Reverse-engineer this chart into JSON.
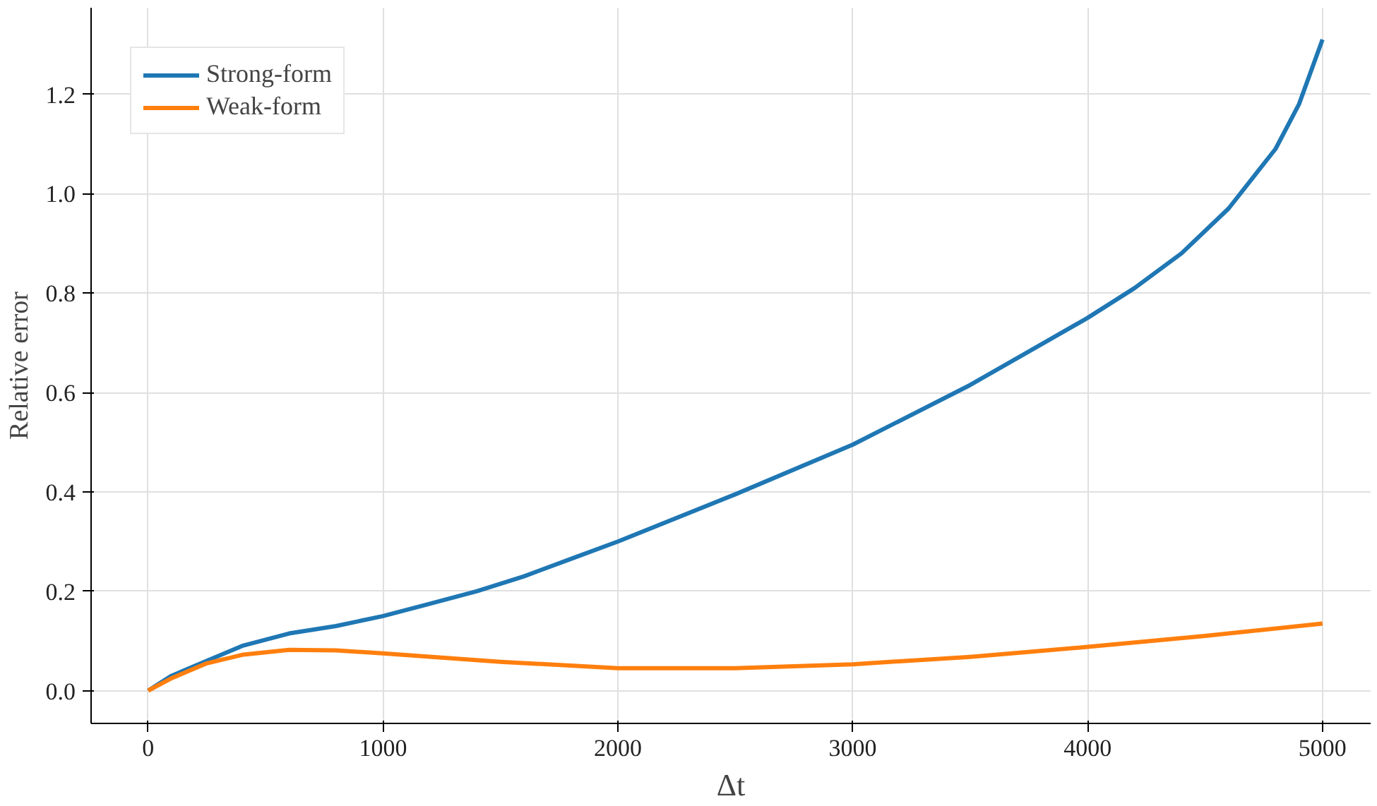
{
  "chart_data": {
    "type": "line",
    "xlabel": "Δt",
    "ylabel": "Relative error",
    "xlim": [
      -243,
      5205
    ],
    "ylim": [
      -0.066,
      1.374
    ],
    "xticks": [
      0,
      1000,
      2000,
      3000,
      4000,
      5000
    ],
    "yticks": [
      {
        "value": 0,
        "label": "0.0"
      },
      0.2,
      0.4,
      0.6,
      0.8,
      {
        "value": 1,
        "label": "1.0"
      },
      1.2
    ],
    "grid": true,
    "legend": "top left",
    "line_style": "solid",
    "marker": "none",
    "x": [
      0,
      100,
      250,
      400,
      600,
      800,
      1000,
      1200,
      1400,
      1600,
      1800,
      2000,
      2500,
      3000,
      3500,
      4000,
      4200,
      4400,
      4600,
      4800,
      4900,
      5000
    ],
    "series": [
      {
        "name": "Strong-form",
        "color": "#1f77b4",
        "values": [
          0,
          0.03,
          0.06,
          0.09,
          0.115,
          0.13,
          0.15,
          0.175,
          0.2,
          0.23,
          0.265,
          0.3,
          0.395,
          0.495,
          0.615,
          0.75,
          0.81,
          0.88,
          0.97,
          1.09,
          1.18,
          1.31
        ]
      },
      {
        "name": "Weak-form",
        "color": "#ff7f0e",
        "x": [
          0,
          100,
          250,
          400,
          600,
          800,
          1000,
          1500,
          2000,
          2500,
          3000,
          3500,
          4000,
          4500,
          5000
        ],
        "values": [
          0,
          0.025,
          0.055,
          0.072,
          0.082,
          0.081,
          0.075,
          0.058,
          0.045,
          0.045,
          0.053,
          0.068,
          0.088,
          0.11,
          0.135
        ]
      }
    ]
  }
}
